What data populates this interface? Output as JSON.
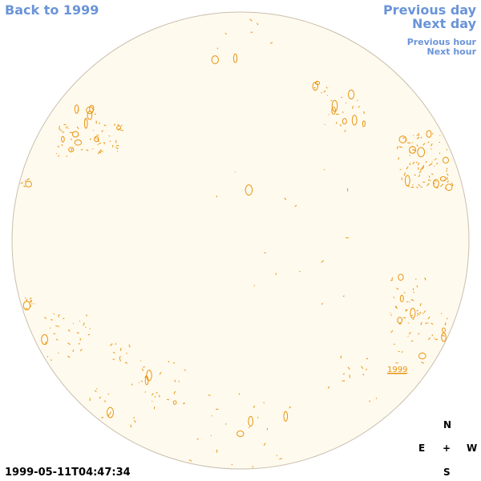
{
  "nav": {
    "back": "Back to 1999",
    "previous_day": "Previous day",
    "next_day": "Next day",
    "previous_hour": "Previous hour",
    "next_hour": "Next hour"
  },
  "timestamp": "1999-05-11T04:47:34",
  "region_label": "1999",
  "compass": {
    "north": "N",
    "east": "E",
    "center": "+",
    "west": "W",
    "south": "S"
  },
  "colors": {
    "disk_fill": "#fffaee",
    "disk_stroke": "#c9bfae",
    "contour": "#e8940e",
    "link": "#6a94d8"
  }
}
